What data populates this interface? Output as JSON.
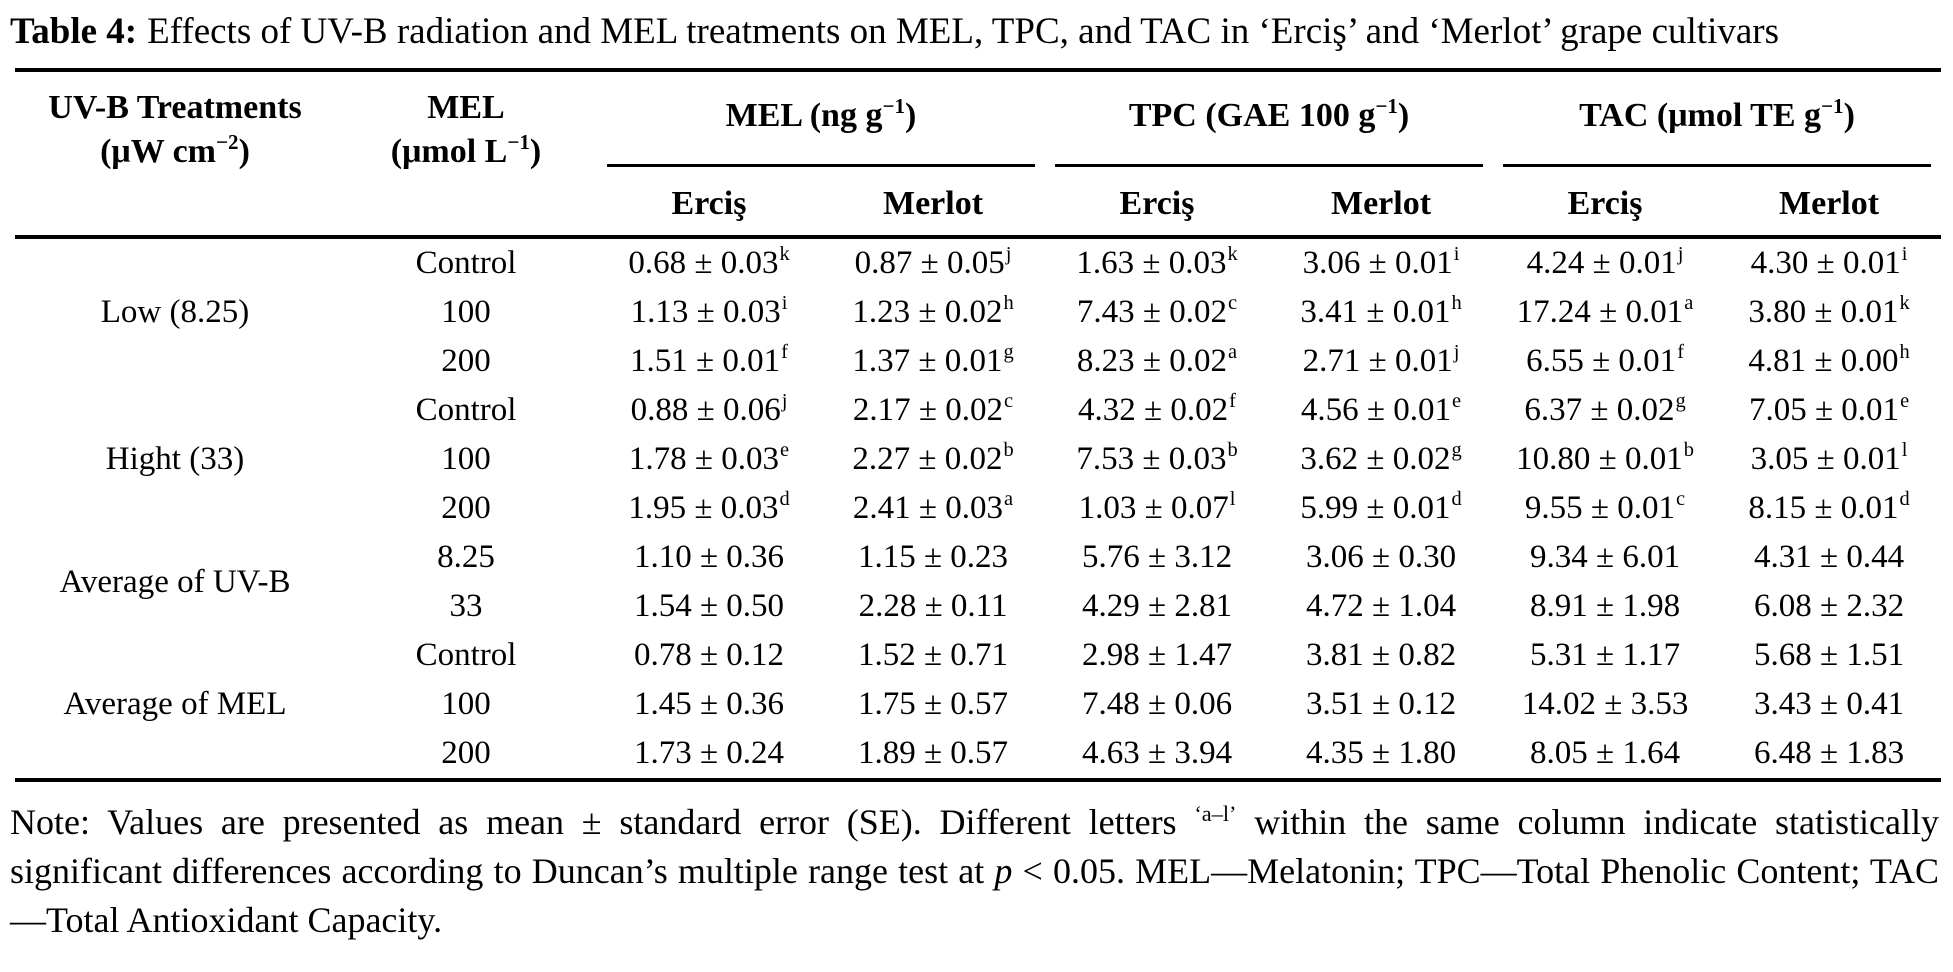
{
  "title": {
    "label": "Table 4:",
    "text": "Effects of UV-B radiation and MEL treatments on MEL, TPC, and TAC in ‘Erciş’ and ‘Merlot’ grape cultivars"
  },
  "table": {
    "col1": {
      "line1": "UV-B Treatments",
      "unit_pre": "(μW cm",
      "unit_sup": "−2",
      "unit_post": ")"
    },
    "col2": {
      "line1": "MEL",
      "unit_pre": "(μmol L",
      "unit_sup": "−1",
      "unit_post": ")"
    },
    "groups": [
      {
        "pre": "MEL (ng g",
        "sup": "−1",
        "post": ")",
        "sub": [
          "Erciş",
          "Merlot"
        ]
      },
      {
        "pre": "TPC (GAE 100 g",
        "sup": "−1",
        "post": ")",
        "sub": [
          "Erciş",
          "Merlot"
        ]
      },
      {
        "pre": "TAC (μmol TE g",
        "sup": "−1",
        "post": ")",
        "sub": [
          "Erciş",
          "Merlot"
        ]
      }
    ],
    "row_groups": [
      {
        "label": "Low (8.25)",
        "rows": [
          {
            "mel": "Control",
            "cells": [
              [
                "0.68 ± 0.03",
                "k"
              ],
              [
                "0.87 ± 0.05",
                "j"
              ],
              [
                "1.63 ± 0.03",
                "k"
              ],
              [
                "3.06 ± 0.01",
                "i"
              ],
              [
                "4.24 ± 0.01",
                "j"
              ],
              [
                "4.30 ± 0.01",
                "i"
              ]
            ]
          },
          {
            "mel": "100",
            "cells": [
              [
                "1.13 ± 0.03",
                "i"
              ],
              [
                "1.23 ± 0.02",
                "h"
              ],
              [
                "7.43 ± 0.02",
                "c"
              ],
              [
                "3.41 ± 0.01",
                "h"
              ],
              [
                "17.24 ± 0.01",
                "a"
              ],
              [
                "3.80 ± 0.01",
                "k"
              ]
            ]
          },
          {
            "mel": "200",
            "cells": [
              [
                "1.51 ± 0.01",
                "f"
              ],
              [
                "1.37 ± 0.01",
                "g"
              ],
              [
                "8.23 ± 0.02",
                "a"
              ],
              [
                "2.71 ± 0.01",
                "j"
              ],
              [
                "6.55 ± 0.01",
                "f"
              ],
              [
                "4.81 ± 0.00",
                "h"
              ]
            ]
          }
        ]
      },
      {
        "label": "Hight (33)",
        "rows": [
          {
            "mel": "Control",
            "cells": [
              [
                "0.88 ± 0.06",
                "j"
              ],
              [
                "2.17 ± 0.02",
                "c"
              ],
              [
                "4.32 ± 0.02",
                "f"
              ],
              [
                "4.56 ± 0.01",
                "e"
              ],
              [
                "6.37 ± 0.02",
                "g"
              ],
              [
                "7.05 ± 0.01",
                "e"
              ]
            ]
          },
          {
            "mel": "100",
            "cells": [
              [
                "1.78 ± 0.03",
                "e"
              ],
              [
                "2.27 ± 0.02",
                "b"
              ],
              [
                "7.53 ± 0.03",
                "b"
              ],
              [
                "3.62 ± 0.02",
                "g"
              ],
              [
                "10.80 ± 0.01",
                "b"
              ],
              [
                "3.05 ± 0.01",
                "l"
              ]
            ]
          },
          {
            "mel": "200",
            "cells": [
              [
                "1.95 ± 0.03",
                "d"
              ],
              [
                "2.41 ± 0.03",
                "a"
              ],
              [
                "1.03 ± 0.07",
                "l"
              ],
              [
                "5.99 ± 0.01",
                "d"
              ],
              [
                "9.55 ± 0.01",
                "c"
              ],
              [
                "8.15 ± 0.01",
                "d"
              ]
            ]
          }
        ]
      },
      {
        "label": "Average of UV-B",
        "rows": [
          {
            "mel": "8.25",
            "cells": [
              [
                "1.10 ± 0.36",
                ""
              ],
              [
                "1.15 ± 0.23",
                ""
              ],
              [
                "5.76 ± 3.12",
                ""
              ],
              [
                "3.06 ± 0.30",
                ""
              ],
              [
                "9.34 ± 6.01",
                ""
              ],
              [
                "4.31 ± 0.44",
                ""
              ]
            ]
          },
          {
            "mel": "33",
            "cells": [
              [
                "1.54 ± 0.50",
                ""
              ],
              [
                "2.28 ± 0.11",
                ""
              ],
              [
                "4.29 ± 2.81",
                ""
              ],
              [
                "4.72 ± 1.04",
                ""
              ],
              [
                "8.91 ± 1.98",
                ""
              ],
              [
                "6.08 ± 2.32",
                ""
              ]
            ]
          }
        ]
      },
      {
        "label": "Average of MEL",
        "rows": [
          {
            "mel": "Control",
            "cells": [
              [
                "0.78 ± 0.12",
                ""
              ],
              [
                "1.52 ± 0.71",
                ""
              ],
              [
                "2.98 ± 1.47",
                ""
              ],
              [
                "3.81 ± 0.82",
                ""
              ],
              [
                "5.31 ± 1.17",
                ""
              ],
              [
                "5.68 ± 1.51",
                ""
              ]
            ]
          },
          {
            "mel": "100",
            "cells": [
              [
                "1.45 ± 0.36",
                ""
              ],
              [
                "1.75 ± 0.57",
                ""
              ],
              [
                "7.48 ± 0.06",
                ""
              ],
              [
                "3.51 ± 0.12",
                ""
              ],
              [
                "14.02 ± 3.53",
                ""
              ],
              [
                "3.43 ± 0.41",
                ""
              ]
            ]
          },
          {
            "mel": "200",
            "cells": [
              [
                "1.73 ± 0.24",
                ""
              ],
              [
                "1.89 ± 0.57",
                ""
              ],
              [
                "4.63 ± 3.94",
                ""
              ],
              [
                "4.35 ± 1.80",
                ""
              ],
              [
                "8.05 ± 1.64",
                ""
              ],
              [
                "6.48 ± 1.83",
                ""
              ]
            ]
          }
        ]
      }
    ]
  },
  "note": {
    "part1": "Note: Values are presented as mean ± standard error (SE). Different letters ",
    "letters_sup": "‘a–l’",
    "part2": " within the same column indicate statistically significant differences according to Duncan’s multiple range test at ",
    "p_italic": "p",
    "part3": " < 0.05. MEL—Melatonin; TPC—Total Phenolic Content; TAC—Total Antioxidant Capacity."
  }
}
